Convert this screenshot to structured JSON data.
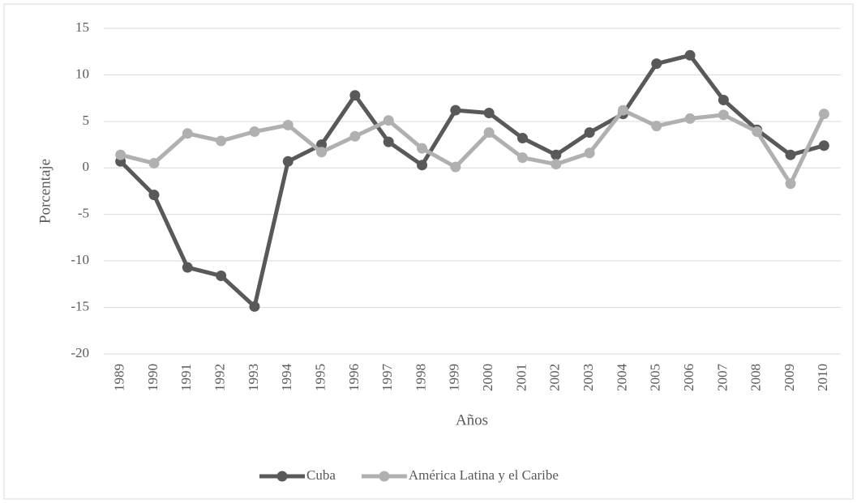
{
  "chart_data": {
    "type": "line",
    "categories": [
      "1989",
      "1990",
      "1991",
      "1992",
      "1993",
      "1994",
      "1995",
      "1996",
      "1997",
      "1998",
      "1999",
      "2000",
      "2001",
      "2002",
      "2003",
      "2004",
      "2005",
      "2006",
      "2007",
      "2008",
      "2009",
      "2010"
    ],
    "series": [
      {
        "name": "Cuba",
        "color": "#595959",
        "values": [
          0.7,
          -2.9,
          -10.7,
          -11.6,
          -14.9,
          0.7,
          2.5,
          7.8,
          2.8,
          0.3,
          6.2,
          5.9,
          3.2,
          1.4,
          3.8,
          5.8,
          11.2,
          12.1,
          7.3,
          4.1,
          1.4,
          2.4
        ]
      },
      {
        "name": "América Latina y el Caribe",
        "color": "#b0b0b0",
        "values": [
          1.4,
          0.5,
          3.7,
          2.9,
          3.9,
          4.6,
          1.7,
          3.4,
          5.1,
          2.1,
          0.1,
          3.8,
          1.1,
          0.4,
          1.6,
          6.2,
          4.5,
          5.3,
          5.7,
          3.9,
          -1.7,
          5.8
        ]
      }
    ],
    "xlabel": "Años",
    "ylabel": "Porcentaje",
    "ylim": [
      -20,
      15
    ],
    "yticks": [
      -20,
      -15,
      -10,
      -5,
      0,
      5,
      10,
      15
    ],
    "grid": true,
    "legend": "bottom"
  }
}
